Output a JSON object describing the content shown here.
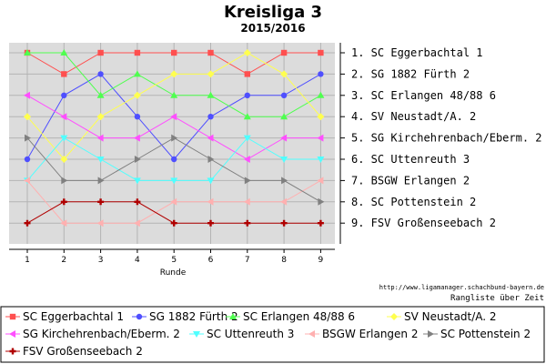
{
  "chart_data": {
    "type": "line",
    "title": "Kreisliga 3",
    "subtitle": "2015/2016",
    "xlabel": "Runde",
    "x": [
      1,
      2,
      3,
      4,
      5,
      6,
      7,
      8,
      9
    ],
    "ylim": [
      1,
      9
    ],
    "y_inverted": true,
    "grid": true,
    "legend_placement": "bottom",
    "final_standings": [
      "1. SC Eggerbachtal 1",
      "2. SG 1882 Fürth 2",
      "3. SC Erlangen 48/88 6",
      "4. SV Neustadt/A. 2",
      "5. SG Kirchehrenbach/Eberm. 2",
      "6. SC Uttenreuth 3",
      "7. BSGW Erlangen 2",
      "8. SC Pottenstein 2",
      "9. FSV Großenseebach 2"
    ],
    "series": [
      {
        "name": "SC Eggerbachtal 1",
        "color": "#ff4f4f",
        "marker": "square",
        "values": [
          1,
          2,
          1,
          1,
          1,
          1,
          2,
          1,
          1
        ]
      },
      {
        "name": "SG 1882 Fürth 2",
        "color": "#4f4fff",
        "marker": "circle",
        "values": [
          6,
          3,
          2,
          4,
          6,
          4,
          3,
          3,
          2
        ]
      },
      {
        "name": "SC Erlangen 48/88 6",
        "color": "#4fff4f",
        "marker": "triangle-up",
        "values": [
          1,
          1,
          3,
          2,
          3,
          3,
          4,
          4,
          3
        ]
      },
      {
        "name": "SV Neustadt/A. 2",
        "color": "#ffff4f",
        "marker": "diamond",
        "values": [
          4,
          6,
          4,
          3,
          2,
          2,
          1,
          2,
          4
        ]
      },
      {
        "name": "SG Kirchehrenbach/Eberm. 2",
        "color": "#ff4fff",
        "marker": "triangle-left",
        "values": [
          3,
          4,
          5,
          5,
          4,
          5,
          6,
          5,
          5
        ]
      },
      {
        "name": "SC Uttenreuth 3",
        "color": "#4fffff",
        "marker": "triangle-down",
        "values": [
          7,
          5,
          6,
          7,
          7,
          7,
          5,
          6,
          6
        ]
      },
      {
        "name": "BSGW Erlangen 2",
        "color": "#ffb0b0",
        "marker": "triangle-left",
        "values": [
          7,
          9,
          9,
          9,
          8,
          8,
          8,
          8,
          7
        ]
      },
      {
        "name": "SC Pottenstein 2",
        "color": "#808080",
        "marker": "triangle-right",
        "values": [
          5,
          7,
          7,
          6,
          5,
          6,
          7,
          7,
          8
        ]
      },
      {
        "name": "FSV Großenseebach 2",
        "color": "#b00000",
        "marker": "cross",
        "values": [
          9,
          8,
          8,
          8,
          9,
          9,
          9,
          9,
          9
        ]
      }
    ]
  },
  "footer": {
    "url": "http://www.ligamanager.schachbund-bayern.de",
    "caption": "Rangliste über Zeit"
  }
}
